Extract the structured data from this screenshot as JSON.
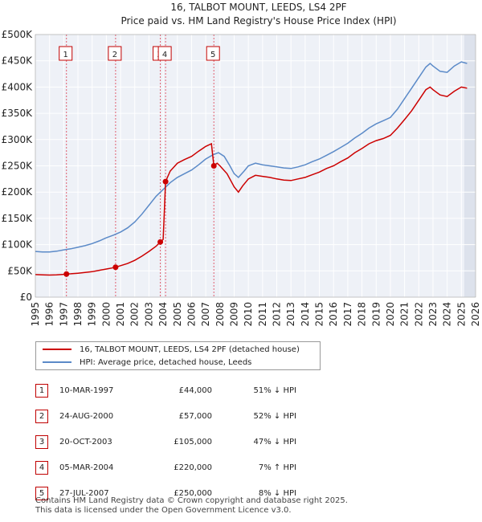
{
  "chart_data": {
    "type": "line",
    "title": "16, TALBOT MOUNT, LEEDS, LS4 2PF",
    "subtitle": "Price paid vs. HM Land Registry's House Price Index (HPI)",
    "xlim": [
      1995,
      2026
    ],
    "ylim": [
      0,
      500000
    ],
    "xticks": [
      1995,
      1996,
      1997,
      1998,
      1999,
      2000,
      2001,
      2002,
      2003,
      2004,
      2005,
      2006,
      2007,
      2008,
      2009,
      2010,
      2011,
      2012,
      2013,
      2014,
      2015,
      2016,
      2017,
      2018,
      2019,
      2020,
      2021,
      2022,
      2023,
      2024,
      2025,
      2026
    ],
    "yticks": [
      {
        "value": 0,
        "label": "£0"
      },
      {
        "value": 50000,
        "label": "£50K"
      },
      {
        "value": 100000,
        "label": "£100K"
      },
      {
        "value": 150000,
        "label": "£150K"
      },
      {
        "value": 200000,
        "label": "£200K"
      },
      {
        "value": 250000,
        "label": "£250K"
      },
      {
        "value": 300000,
        "label": "£300K"
      },
      {
        "value": 350000,
        "label": "£350K"
      },
      {
        "value": 400000,
        "label": "£400K"
      },
      {
        "value": 450000,
        "label": "£450K"
      },
      {
        "value": 500000,
        "label": "£500K"
      }
    ],
    "grid": true,
    "future_shade_from": 2025.2,
    "series": [
      {
        "name": "16, TALBOT MOUNT, LEEDS, LS4 2PF (detached house)",
        "color": "#cc0000",
        "points": [
          [
            1995.0,
            43000
          ],
          [
            1995.5,
            42500
          ],
          [
            1996.0,
            42000
          ],
          [
            1996.5,
            42500
          ],
          [
            1997.0,
            43500
          ],
          [
            1997.19,
            44000
          ],
          [
            1997.5,
            44500
          ],
          [
            1998.0,
            45500
          ],
          [
            1998.5,
            47000
          ],
          [
            1999.0,
            48500
          ],
          [
            1999.5,
            51000
          ],
          [
            2000.0,
            53500
          ],
          [
            2000.4,
            55500
          ],
          [
            2000.65,
            57000
          ],
          [
            2001.0,
            60000
          ],
          [
            2001.5,
            64000
          ],
          [
            2002.0,
            70000
          ],
          [
            2002.5,
            78000
          ],
          [
            2003.0,
            87000
          ],
          [
            2003.5,
            97000
          ],
          [
            2003.8,
            105000
          ],
          [
            2003.9,
            107000
          ],
          [
            2004.0,
            110000
          ],
          [
            2004.17,
            220000
          ],
          [
            2004.5,
            240000
          ],
          [
            2005.0,
            255000
          ],
          [
            2005.5,
            262000
          ],
          [
            2006.0,
            268000
          ],
          [
            2006.5,
            278000
          ],
          [
            2007.0,
            287000
          ],
          [
            2007.4,
            292000
          ],
          [
            2007.57,
            250000
          ],
          [
            2007.8,
            255000
          ],
          [
            2008.0,
            250000
          ],
          [
            2008.5,
            235000
          ],
          [
            2009.0,
            210000
          ],
          [
            2009.3,
            200000
          ],
          [
            2009.6,
            212000
          ],
          [
            2010.0,
            225000
          ],
          [
            2010.5,
            232000
          ],
          [
            2011.0,
            230000
          ],
          [
            2011.5,
            228000
          ],
          [
            2012.0,
            225000
          ],
          [
            2012.5,
            223000
          ],
          [
            2013.0,
            222000
          ],
          [
            2013.5,
            225000
          ],
          [
            2014.0,
            228000
          ],
          [
            2014.5,
            233000
          ],
          [
            2015.0,
            238000
          ],
          [
            2015.5,
            245000
          ],
          [
            2016.0,
            250000
          ],
          [
            2016.5,
            258000
          ],
          [
            2017.0,
            265000
          ],
          [
            2017.5,
            275000
          ],
          [
            2018.0,
            283000
          ],
          [
            2018.5,
            292000
          ],
          [
            2019.0,
            298000
          ],
          [
            2019.5,
            302000
          ],
          [
            2020.0,
            308000
          ],
          [
            2020.5,
            322000
          ],
          [
            2021.0,
            338000
          ],
          [
            2021.5,
            355000
          ],
          [
            2022.0,
            375000
          ],
          [
            2022.5,
            395000
          ],
          [
            2022.8,
            400000
          ],
          [
            2023.0,
            395000
          ],
          [
            2023.5,
            385000
          ],
          [
            2024.0,
            382000
          ],
          [
            2024.5,
            392000
          ],
          [
            2025.0,
            400000
          ],
          [
            2025.4,
            398000
          ]
        ]
      },
      {
        "name": "HPI: Average price, detached house, Leeds",
        "color": "#5b8ac8",
        "points": [
          [
            1995.0,
            87000
          ],
          [
            1995.5,
            86000
          ],
          [
            1996.0,
            86000
          ],
          [
            1996.5,
            87500
          ],
          [
            1997.0,
            90000
          ],
          [
            1997.5,
            92000
          ],
          [
            1998.0,
            95000
          ],
          [
            1998.5,
            98000
          ],
          [
            1999.0,
            102000
          ],
          [
            1999.5,
            107000
          ],
          [
            2000.0,
            113000
          ],
          [
            2000.5,
            118000
          ],
          [
            2001.0,
            124000
          ],
          [
            2001.5,
            132000
          ],
          [
            2002.0,
            143000
          ],
          [
            2002.5,
            158000
          ],
          [
            2003.0,
            175000
          ],
          [
            2003.5,
            192000
          ],
          [
            2004.0,
            205000
          ],
          [
            2004.5,
            218000
          ],
          [
            2005.0,
            228000
          ],
          [
            2005.5,
            235000
          ],
          [
            2006.0,
            242000
          ],
          [
            2006.5,
            252000
          ],
          [
            2007.0,
            263000
          ],
          [
            2007.5,
            271000
          ],
          [
            2007.9,
            275000
          ],
          [
            2008.3,
            268000
          ],
          [
            2008.7,
            250000
          ],
          [
            2009.0,
            235000
          ],
          [
            2009.3,
            228000
          ],
          [
            2009.7,
            240000
          ],
          [
            2010.0,
            250000
          ],
          [
            2010.5,
            255000
          ],
          [
            2011.0,
            252000
          ],
          [
            2011.5,
            250000
          ],
          [
            2012.0,
            248000
          ],
          [
            2012.5,
            246000
          ],
          [
            2013.0,
            245000
          ],
          [
            2013.5,
            248000
          ],
          [
            2014.0,
            252000
          ],
          [
            2014.5,
            258000
          ],
          [
            2015.0,
            263000
          ],
          [
            2015.5,
            270000
          ],
          [
            2016.0,
            277000
          ],
          [
            2016.5,
            285000
          ],
          [
            2017.0,
            293000
          ],
          [
            2017.5,
            303000
          ],
          [
            2018.0,
            312000
          ],
          [
            2018.5,
            322000
          ],
          [
            2019.0,
            330000
          ],
          [
            2019.5,
            336000
          ],
          [
            2020.0,
            342000
          ],
          [
            2020.5,
            358000
          ],
          [
            2021.0,
            378000
          ],
          [
            2021.5,
            398000
          ],
          [
            2022.0,
            418000
          ],
          [
            2022.5,
            438000
          ],
          [
            2022.8,
            445000
          ],
          [
            2023.0,
            440000
          ],
          [
            2023.5,
            430000
          ],
          [
            2024.0,
            428000
          ],
          [
            2024.5,
            440000
          ],
          [
            2025.0,
            448000
          ],
          [
            2025.4,
            445000
          ]
        ]
      }
    ],
    "markers": [
      {
        "label": "1",
        "x": 1997.19,
        "y": 44000
      },
      {
        "label": "2",
        "x": 2000.65,
        "y": 57000
      },
      {
        "label": "3",
        "x": 2003.8,
        "y": 105000
      },
      {
        "label": "4",
        "x": 2004.17,
        "y": 220000
      },
      {
        "label": "5",
        "x": 2007.57,
        "y": 250000
      }
    ]
  },
  "legend": {
    "property_label": "16, TALBOT MOUNT, LEEDS, LS4 2PF (detached house)",
    "hpi_label": "HPI: Average price, detached house, Leeds"
  },
  "transactions": [
    {
      "num": "1",
      "date": "10-MAR-1997",
      "price": "£44,000",
      "hpi": "51% ↓ HPI"
    },
    {
      "num": "2",
      "date": "24-AUG-2000",
      "price": "£57,000",
      "hpi": "52% ↓ HPI"
    },
    {
      "num": "3",
      "date": "20-OCT-2003",
      "price": "£105,000",
      "hpi": "47% ↓ HPI"
    },
    {
      "num": "4",
      "date": "05-MAR-2004",
      "price": "£220,000",
      "hpi": "7% ↑ HPI"
    },
    {
      "num": "5",
      "date": "27-JUL-2007",
      "price": "£250,000",
      "hpi": "8% ↓ HPI"
    }
  ],
  "footer": {
    "line1": "Contains HM Land Registry data © Crown copyright and database right 2025.",
    "line2": "This data is licensed under the Open Government Licence v3.0."
  }
}
